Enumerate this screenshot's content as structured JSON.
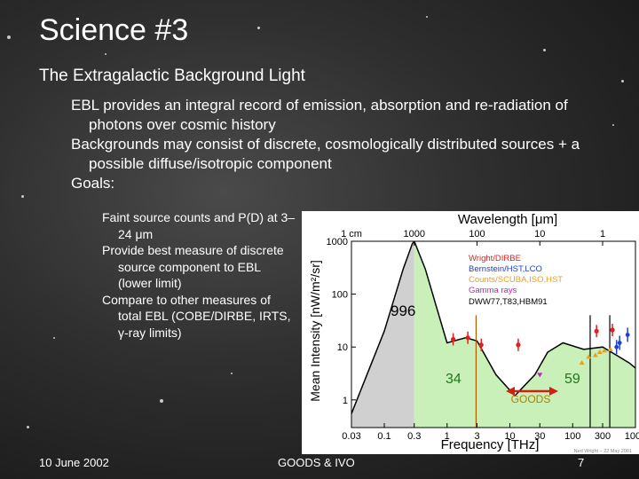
{
  "slide": {
    "title": "Science #3",
    "subtitle": "The Extragalactic Background Light",
    "bullets": [
      "EBL provides an integral record of emission, absorption and re-radiation of photons over cosmic history",
      "Backgrounds may consist of discrete, cosmologically distributed sources  + a possible diffuse/isotropic component",
      "Goals:"
    ],
    "sub_bullets": [
      "Faint source counts and P(D) at 3–24 μm",
      "Provide best measure of discrete source component to EBL (lower limit)",
      "Compare to other measures of total EBL (COBE/DIRBE, IRTS, γ-ray limits)"
    ]
  },
  "footer": {
    "date": "10 June 2002",
    "event": "GOODS & IVO",
    "page": "7"
  },
  "chart_data": {
    "type": "line",
    "title": "",
    "xlabel": "Frequency [THz]",
    "ylabel": "Mean Intensity [nW/m²/sr]",
    "top_axis_label": "Wavelength [μm]",
    "x_scale": "log",
    "y_scale": "log",
    "xlim": [
      0.03,
      1000
    ],
    "ylim": [
      0.3,
      1000
    ],
    "x_ticks": [
      "0.03",
      "0.1",
      "0.3",
      "1",
      "3",
      "10",
      "30",
      "100",
      "300",
      "1000"
    ],
    "y_ticks": [
      "1",
      "10",
      "100",
      "1000"
    ],
    "top_ticks": [
      "1 cm",
      "1000",
      "100",
      "10",
      "1"
    ],
    "legend": [
      {
        "label": "Wright/DIRBE",
        "color": "#e02020"
      },
      {
        "label": "Bernstein/HST,LCO",
        "color": "#2040d0"
      },
      {
        "label": "Counts/SCUBA,ISO,HST",
        "color": "#e8a020"
      },
      {
        "label": "Gamma rays",
        "color": "#c020c0"
      },
      {
        "label": "DWW77,T83,HBM91",
        "color": "#000000"
      }
    ],
    "annotations": {
      "cmb_label": "996",
      "fir_label": "34",
      "optical_label": "59",
      "goods_label": "GOODS",
      "credit": "Ned Wright – 22 May 2001"
    },
    "series": [
      {
        "name": "",
        "x": [
          0.03,
          0.1,
          0.2,
          0.28,
          0.3
        ],
        "y": [
          0.55,
          20,
          300,
          900,
          1000
        ]
      },
      {
        "name": "",
        "x": [
          0.3,
          0.45,
          0.7,
          1,
          2,
          3,
          6,
          12,
          25,
          40,
          70,
          150,
          300,
          500,
          800,
          1000
        ],
        "y": [
          1000,
          300,
          50,
          12,
          15,
          13,
          3,
          1.2,
          3,
          8,
          12,
          9,
          10,
          7,
          5,
          4
        ]
      }
    ],
    "data_points": {
      "dirbe": {
        "x": [
          1.25,
          2.14,
          3.5,
          13.6,
          240,
          430
        ],
        "y": [
          14,
          15,
          11,
          11,
          20,
          21
        ]
      },
      "hst": {
        "x": [
          500,
          560,
          750
        ],
        "y": [
          10,
          12,
          17
        ]
      },
      "counts": {
        "x": [
          140,
          180,
          230,
          270,
          320,
          400
        ],
        "y": [
          5,
          6.5,
          7,
          8,
          8.5,
          9
        ]
      },
      "gamma": {
        "x": [
          30
        ],
        "y": [
          3
        ]
      }
    }
  }
}
